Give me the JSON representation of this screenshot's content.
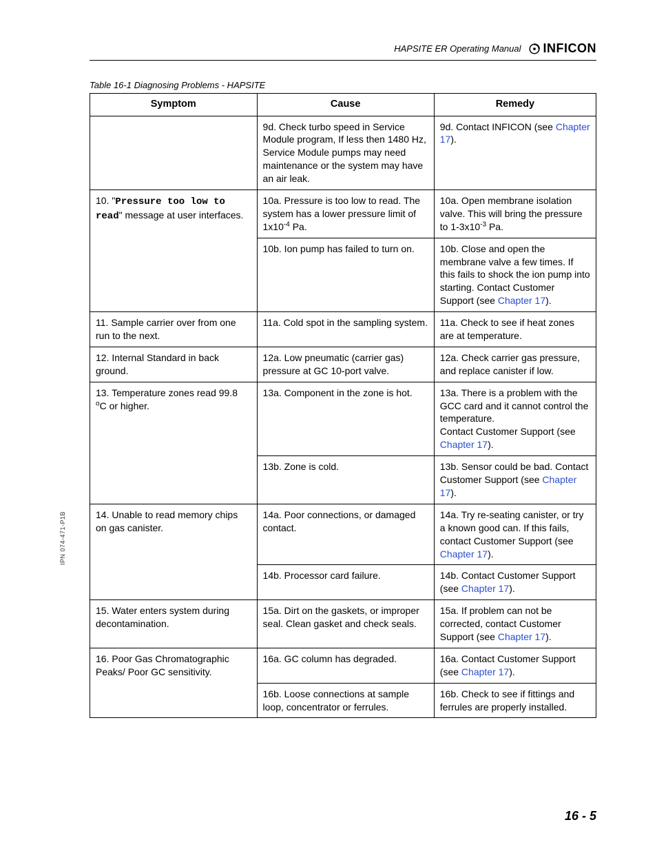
{
  "header": {
    "manual_title": "HAPSITE ER Operating Manual",
    "logo_text": "INFICON"
  },
  "caption": "Table 16-1  Diagnosing Problems - HAPSITE",
  "columns": [
    "Symptom",
    "Cause",
    "Remedy"
  ],
  "rows": [
    {
      "symptom": "",
      "cause": "9d. Check turbo speed in Service Module program, If less then 1480 Hz, Service Module pumps may need maintenance or the system may have an air leak.",
      "remedy_pre": "9d. Contact INFICON (see ",
      "remedy_link": "Chapter 17",
      "remedy_post": ")."
    },
    {
      "symptom_pre": "10. \"",
      "symptom_mono": "Pressure too low to read",
      "symptom_post": "\" message at user interfaces.",
      "rowspan": 2,
      "cause_html": "10a. Pressure is too low to read. The system has a lower pressure limit of 1x10<span class='super'>-4</span> Pa.",
      "remedy_html": "10a. Open membrane isolation valve. This will bring the pressure to 1-3x10<span class='super'>-3</span> Pa."
    },
    {
      "cause": "10b. Ion pump has failed to turn on.",
      "remedy_pre": "10b. Close and open the membrane valve a few times. If this fails to shock the ion pump into starting. Contact Customer Support (see ",
      "remedy_link": "Chapter 17",
      "remedy_post": ")."
    },
    {
      "symptom": "11. Sample carrier over from one run to the next.",
      "cause": "11a. Cold spot in the sampling system.",
      "remedy": "11a. Check to see if heat zones are at temperature."
    },
    {
      "symptom": "12. Internal Standard in back ground.",
      "cause": "12a. Low pneumatic (carrier gas) pressure at GC 10-port valve.",
      "remedy": "12a. Check carrier gas pressure, and replace canister if low."
    },
    {
      "symptom_html": "13. Temperature zones read 99.8 <span class='super'>o</span>C or higher.",
      "rowspan": 2,
      "cause": "13a. Component in the zone is hot.",
      "remedy_pre": "13a. There is a problem with the GCC card and it cannot control the temperature.\nContact Customer Support (see ",
      "remedy_link": "Chapter 17",
      "remedy_post": ")."
    },
    {
      "cause": "13b. Zone is cold.",
      "remedy_pre": "13b. Sensor could be bad. Contact Customer Support (see ",
      "remedy_link": "Chapter 17",
      "remedy_post": ")."
    },
    {
      "symptom": "14. Unable to read memory chips on gas canister.",
      "rowspan": 2,
      "cause": "14a. Poor connections, or damaged contact.",
      "remedy_pre": "14a. Try re-seating canister, or try a known good can. If this fails, contact Customer Support (see ",
      "remedy_link": "Chapter 17",
      "remedy_post": ")."
    },
    {
      "cause": "14b. Processor card failure.",
      "remedy_pre": "14b. Contact Customer Support (see ",
      "remedy_link": "Chapter 17",
      "remedy_post": ")."
    },
    {
      "symptom": "15. Water enters system during decontamination.",
      "cause": "15a. Dirt on the gaskets, or improper seal. Clean gasket and check seals.",
      "remedy_pre": "15a. If problem can not be corrected, contact Customer Support (see ",
      "remedy_link": "Chapter 17",
      "remedy_post": ")."
    },
    {
      "symptom": "16. Poor Gas Chromatographic Peaks/ Poor GC sensitivity.",
      "rowspan": 2,
      "cause": "16a. GC column has degraded.",
      "remedy_pre": "16a. Contact Customer Support (see ",
      "remedy_link": "Chapter 17",
      "remedy_post": ")."
    },
    {
      "cause": "16b. Loose connections at sample loop, concentrator or ferrules.",
      "remedy": "16b. Check to see if fittings and ferrules are properly installed."
    }
  ],
  "side_text": "IPN 074-471-P1B",
  "page_number": "16 - 5",
  "colors": {
    "text": "#000000",
    "link": "#2a4fd0",
    "background": "#ffffff",
    "border": "#000000"
  }
}
